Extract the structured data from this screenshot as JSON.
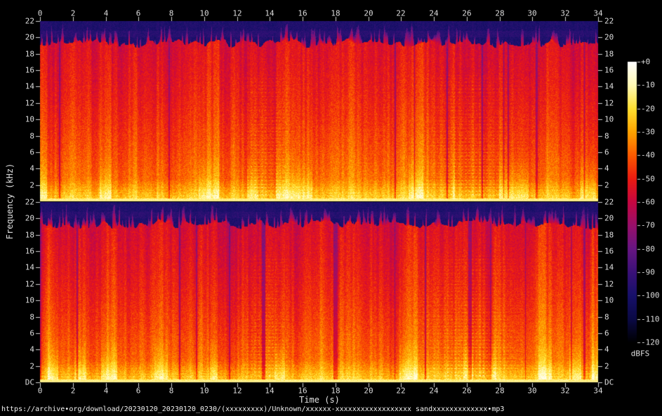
{
  "footer": {
    "url": "https://archive•org/download/20230120_20230120_0230/(xxxxxxxxx)/Unknown/xxxxxx-xxxxxxxxxxxxxxxxxx sandxxxxxxxxxxxxx•mp3"
  },
  "chart_data": {
    "type": "heatmap",
    "subtype": "audio-spectrogram",
    "title": "",
    "xlabel": "Time (s)",
    "ylabel": "Frequency (kHz)",
    "x_range_s": [
      0,
      34
    ],
    "x_tick_step_s": 2,
    "x_ticks": [
      0,
      2,
      4,
      6,
      8,
      10,
      12,
      14,
      16,
      18,
      20,
      22,
      24,
      26,
      28,
      30,
      32,
      34
    ],
    "y_range_khz": [
      0,
      22
    ],
    "freq_ticks_khz": [
      22,
      20,
      18,
      16,
      14,
      12,
      10,
      8,
      6,
      4,
      2
    ],
    "dc_label": "DC",
    "panels": [
      {
        "name": "channel-1-top"
      },
      {
        "name": "channel-2-bottom"
      }
    ],
    "grid": false,
    "colorbar": {
      "unit": "dBFS",
      "range_db": [
        0,
        -120
      ],
      "tick_step_db": 10,
      "ticks": [
        "+0",
        "-10",
        "-20",
        "-30",
        "-40",
        "-50",
        "-60",
        "-70",
        "-80",
        "-90",
        "-100",
        "-110",
        "-120"
      ],
      "stops": [
        {
          "db": -120,
          "color": "#000000"
        },
        {
          "db": -110,
          "color": "#0b0a45"
        },
        {
          "db": -100,
          "color": "#17106a"
        },
        {
          "db": -90,
          "color": "#3a1178"
        },
        {
          "db": -80,
          "color": "#671683"
        },
        {
          "db": -70,
          "color": "#98106b"
        },
        {
          "db": -60,
          "color": "#c70742"
        },
        {
          "db": -50,
          "color": "#ec1b12"
        },
        {
          "db": -40,
          "color": "#fc5a00"
        },
        {
          "db": -30,
          "color": "#ffa400"
        },
        {
          "db": -20,
          "color": "#ffe030"
        },
        {
          "db": -10,
          "color": "#fff9b5"
        },
        {
          "db": 0,
          "color": "#ffffff"
        }
      ]
    },
    "texture": {
      "seeds": [
        20230120,
        19811206
      ],
      "body_level_db": -50,
      "lowpass_ceiling_khz": 19.1,
      "spike_top_khz": 21.8,
      "noise_floor_db": -104,
      "bass_band_khz": 2.8,
      "bright_base_level_db": -14,
      "harmonic_spacing_hz": 430,
      "harmonic_regions_s": [
        [
          23.5,
          29.0
        ],
        [
          12.4,
          15.2
        ]
      ]
    },
    "description": "Stereo MP3 spectrogram over 34 s: loud broadband red energy with rhythmic vertical striping up to a ~19 kHz lowpass ceiling, transient spikes reaching 22 kHz, bright yellow bass floor near DC, dark blue noise floor above the cutoff; dotted harmonic lines around 13-15 s and 24-29 s."
  }
}
